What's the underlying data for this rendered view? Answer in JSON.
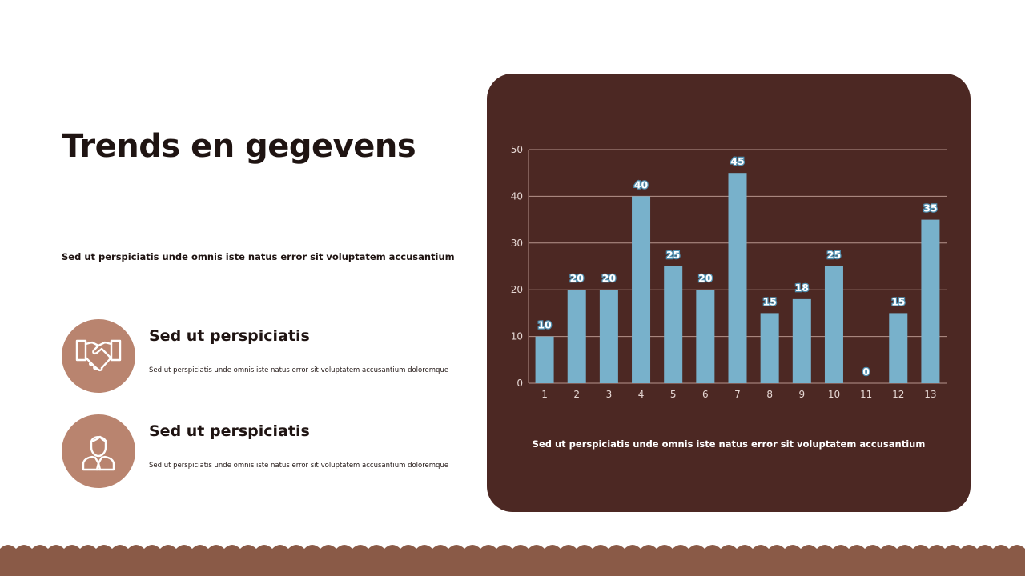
{
  "page": {
    "title": "Trends en gegevens",
    "subtitle": "Sed ut perspiciatis unde omnis iste natus error sit voluptatem accusantium"
  },
  "features": [
    {
      "icon": "handshake-icon",
      "title": "Sed ut perspiciatis",
      "description": "Sed ut perspiciatis unde omnis iste natus error sit voluptatem accusantium doloremque"
    },
    {
      "icon": "person-icon",
      "title": "Sed ut perspiciatis",
      "description": "Sed ut perspiciatis unde omnis iste natus error sit voluptatem accusantium doloremque"
    }
  ],
  "chart_caption": "Sed ut perspiciatis unde omnis iste natus error sit voluptatem accusantium",
  "colors": {
    "card_background": "#4c2823",
    "bar": "#78b1cb",
    "icon_circle": "#b9846f",
    "footer_wave": "#8a5a47",
    "title_text": "#1f1412"
  },
  "chart_data": {
    "type": "bar",
    "categories": [
      "1",
      "2",
      "3",
      "4",
      "5",
      "6",
      "7",
      "8",
      "9",
      "10",
      "11",
      "12",
      "13"
    ],
    "values": [
      10,
      20,
      20,
      40,
      25,
      20,
      45,
      15,
      18,
      25,
      0,
      15,
      35
    ],
    "title": "",
    "xlabel": "",
    "ylabel": "",
    "ylim": [
      0,
      50
    ],
    "yticks": [
      0,
      10,
      20,
      30,
      40,
      50
    ],
    "grid": true,
    "data_labels": true,
    "legend": "none"
  }
}
